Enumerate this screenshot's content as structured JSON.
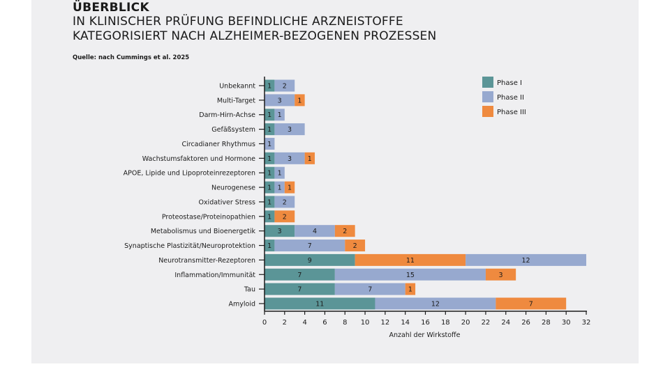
{
  "header": {
    "title": "ÜBERBLICK",
    "subtitle_line1": "IN KLINISCHER PRÜFUNG BEFINDLICHE ARZNEISTOFFE",
    "subtitle_line2": "KATEGORISIERT NACH ALZHEIMER-BEZOGENEN PROZESSEN",
    "source": "Quelle: nach Cummings et al. 2025"
  },
  "chart_data": {
    "type": "bar",
    "orientation": "horizontal",
    "stacked": true,
    "title": "",
    "xlabel": "Anzahl der Wirkstoffe",
    "ylabel": "",
    "xlim": [
      0,
      32
    ],
    "xticks": [
      0,
      2,
      4,
      6,
      8,
      10,
      12,
      14,
      16,
      18,
      20,
      22,
      24,
      26,
      28,
      30,
      32
    ],
    "grid": false,
    "legend_position": "top-right",
    "legend": [
      {
        "name": "Phase I",
        "color": "#5b9597"
      },
      {
        "name": "Phase II",
        "color": "#97a9cf"
      },
      {
        "name": "Phase III",
        "color": "#ef8a3f"
      }
    ],
    "categories": [
      {
        "label": "Unbekannt",
        "segments": [
          {
            "phase": "Phase I",
            "value": 1
          },
          {
            "phase": "Phase II",
            "value": 2
          }
        ]
      },
      {
        "label": "Multi-Target",
        "segments": [
          {
            "phase": "Phase II",
            "value": 3
          },
          {
            "phase": "Phase III",
            "value": 1
          }
        ]
      },
      {
        "label": "Darm-Hirn-Achse",
        "segments": [
          {
            "phase": "Phase I",
            "value": 1
          },
          {
            "phase": "Phase II",
            "value": 1
          }
        ]
      },
      {
        "label": "Gefäßsystem",
        "segments": [
          {
            "phase": "Phase I",
            "value": 1
          },
          {
            "phase": "Phase II",
            "value": 3
          }
        ]
      },
      {
        "label": "Circadianer Rhythmus",
        "segments": [
          {
            "phase": "Phase II",
            "value": 1
          }
        ]
      },
      {
        "label": "Wachstumsfaktoren und Hormone",
        "segments": [
          {
            "phase": "Phase I",
            "value": 1
          },
          {
            "phase": "Phase II",
            "value": 3
          },
          {
            "phase": "Phase III",
            "value": 1
          }
        ]
      },
      {
        "label": "APOE, Lipide und Lipoproteinrezeptoren",
        "segments": [
          {
            "phase": "Phase I",
            "value": 1
          },
          {
            "phase": "Phase II",
            "value": 1
          }
        ]
      },
      {
        "label": "Neurogenese",
        "segments": [
          {
            "phase": "Phase I",
            "value": 1
          },
          {
            "phase": "Phase II",
            "value": 1
          },
          {
            "phase": "Phase III",
            "value": 1
          }
        ]
      },
      {
        "label": "Oxidativer Stress",
        "segments": [
          {
            "phase": "Phase I",
            "value": 1
          },
          {
            "phase": "Phase II",
            "value": 2
          }
        ]
      },
      {
        "label": "Proteostase/Proteinopathien",
        "segments": [
          {
            "phase": "Phase I",
            "value": 1
          },
          {
            "phase": "Phase III",
            "value": 2
          }
        ]
      },
      {
        "label": "Metabolismus und Bioenergetik",
        "segments": [
          {
            "phase": "Phase I",
            "value": 3
          },
          {
            "phase": "Phase II",
            "value": 4
          },
          {
            "phase": "Phase III",
            "value": 2
          }
        ]
      },
      {
        "label": "Synaptische Plastizität/Neuroprotektion",
        "segments": [
          {
            "phase": "Phase I",
            "value": 1
          },
          {
            "phase": "Phase II",
            "value": 7
          },
          {
            "phase": "Phase III",
            "value": 2
          }
        ]
      },
      {
        "label": "Neurotransmitter-Rezeptoren",
        "segments": [
          {
            "phase": "Phase I",
            "value": 9
          },
          {
            "phase": "Phase III",
            "value": 11
          },
          {
            "phase": "Phase II",
            "value": 12
          }
        ]
      },
      {
        "label": "Inflammation/Immunität",
        "segments": [
          {
            "phase": "Phase I",
            "value": 7
          },
          {
            "phase": "Phase II",
            "value": 15
          },
          {
            "phase": "Phase III",
            "value": 3
          }
        ]
      },
      {
        "label": "Tau",
        "segments": [
          {
            "phase": "Phase I",
            "value": 7
          },
          {
            "phase": "Phase II",
            "value": 7
          },
          {
            "phase": "Phase III",
            "value": 1
          }
        ]
      },
      {
        "label": "Amyloid",
        "segments": [
          {
            "phase": "Phase I",
            "value": 11
          },
          {
            "phase": "Phase II",
            "value": 12
          },
          {
            "phase": "Phase III",
            "value": 7
          }
        ]
      }
    ]
  }
}
